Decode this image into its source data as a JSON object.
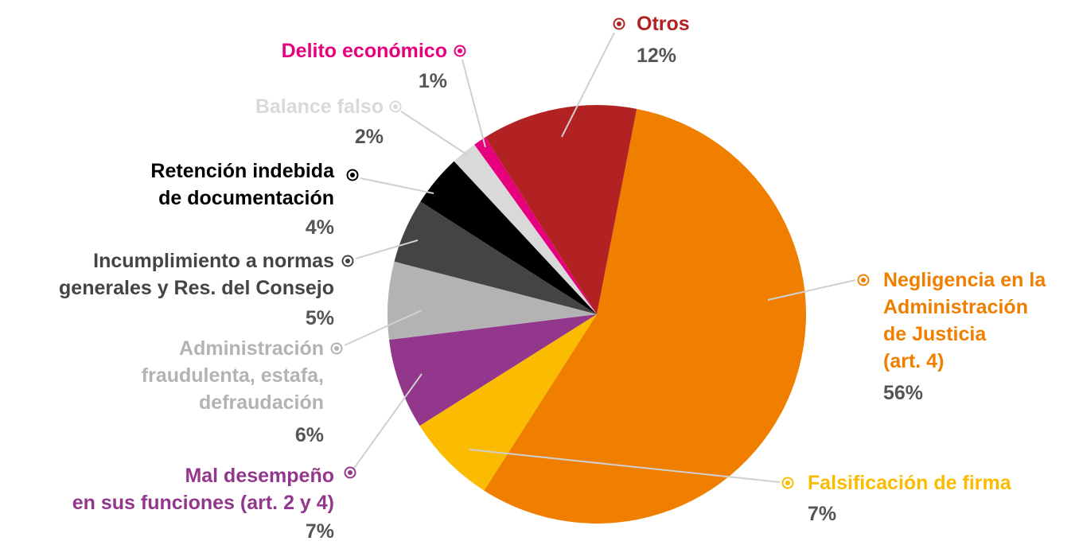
{
  "chart_data": {
    "type": "pie",
    "categories": [
      "Negligencia en la\nAdministración\nde Justicia\n(art. 4)",
      "Falsificación de firma",
      "Mal desempeño\nen sus funciones (art. 2 y 4)",
      "Administración\nfraudulenta, estafa,\ndefraudación",
      "Incumplimiento a normas\ngenerales y Res. del Consejo",
      "Retención indebida\nde documentación",
      "Balance falso",
      "Delito económico",
      "Otros"
    ],
    "values": [
      56,
      7,
      7,
      6,
      5,
      4,
      2,
      1,
      12
    ],
    "value_labels": [
      "56%",
      "7%",
      "7%",
      "6%",
      "5%",
      "4%",
      "2%",
      "1%",
      "12%"
    ],
    "colors": [
      "#f07f00",
      "#fbbb00",
      "#93378c",
      "#b3b3b3",
      "#444444",
      "#000000",
      "#d9d9d9",
      "#e6007e",
      "#b22222"
    ]
  }
}
